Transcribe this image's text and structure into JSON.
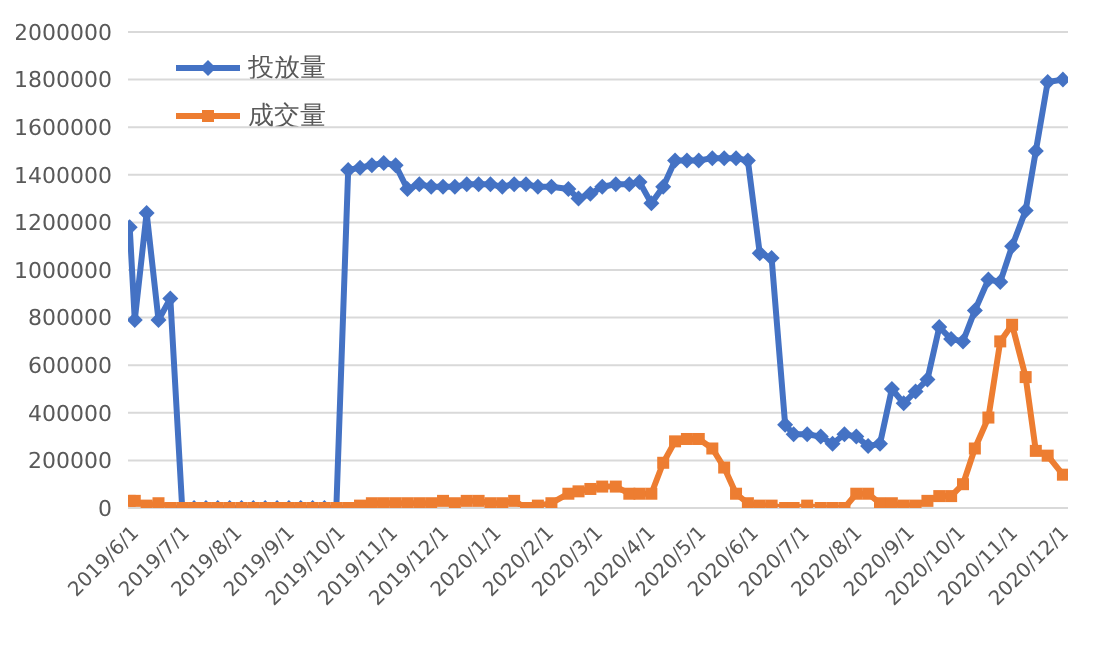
{
  "chart_data": {
    "type": "line",
    "x": [
      "2019-06-01",
      "2019-06-04",
      "2019-06-11",
      "2019-06-18",
      "2019-06-25",
      "2019-07-02",
      "2019-07-09",
      "2019-07-16",
      "2019-07-23",
      "2019-07-30",
      "2019-08-06",
      "2019-08-13",
      "2019-08-20",
      "2019-08-27",
      "2019-09-03",
      "2019-09-10",
      "2019-09-17",
      "2019-09-24",
      "2019-10-01",
      "2019-10-08",
      "2019-10-15",
      "2019-10-22",
      "2019-10-29",
      "2019-11-05",
      "2019-11-12",
      "2019-11-19",
      "2019-11-26",
      "2019-12-03",
      "2019-12-10",
      "2019-12-17",
      "2019-12-24",
      "2019-12-31",
      "2020-01-07",
      "2020-01-14",
      "2020-01-21",
      "2020-01-28",
      "2020-02-05",
      "2020-02-15",
      "2020-02-21",
      "2020-02-28",
      "2020-03-06",
      "2020-03-14",
      "2020-03-22",
      "2020-03-28",
      "2020-04-04",
      "2020-04-11",
      "2020-04-18",
      "2020-04-25",
      "2020-05-02",
      "2020-05-10",
      "2020-05-17",
      "2020-05-24",
      "2020-05-31",
      "2020-06-07",
      "2020-06-14",
      "2020-06-22",
      "2020-06-27",
      "2020-07-05",
      "2020-07-13",
      "2020-07-20",
      "2020-07-27",
      "2020-08-03",
      "2020-08-10",
      "2020-08-17",
      "2020-08-24",
      "2020-08-31",
      "2020-09-07",
      "2020-09-14",
      "2020-09-21",
      "2020-09-28",
      "2020-10-05",
      "2020-10-12",
      "2020-10-20",
      "2020-10-27",
      "2020-11-03",
      "2020-11-11",
      "2020-11-17",
      "2020-11-24",
      "2020-12-03"
    ],
    "series": [
      {
        "name": "投放量",
        "color": "#4472c4",
        "marker": "diamond",
        "values": [
          1180000,
          790000,
          1240000,
          790000,
          880000,
          0,
          0,
          0,
          0,
          0,
          0,
          0,
          0,
          0,
          0,
          0,
          0,
          0,
          0,
          1420000,
          1430000,
          1440000,
          1450000,
          1440000,
          1340000,
          1360000,
          1350000,
          1350000,
          1350000,
          1360000,
          1360000,
          1360000,
          1350000,
          1360000,
          1360000,
          1350000,
          1350000,
          1340000,
          1300000,
          1320000,
          1350000,
          1360000,
          1360000,
          1370000,
          1280000,
          1350000,
          1460000,
          1460000,
          1460000,
          1470000,
          1470000,
          1470000,
          1460000,
          1070000,
          1050000,
          350000,
          310000,
          310000,
          300000,
          270000,
          310000,
          300000,
          260000,
          270000,
          500000,
          440000,
          490000,
          540000,
          760000,
          710000,
          700000,
          830000,
          960000,
          950000,
          1100000,
          1250000,
          1500000,
          1790000,
          1800000
        ]
      },
      {
        "name": "成交量",
        "color": "#ed7d31",
        "marker": "square",
        "values": [
          30000,
          30000,
          10000,
          20000,
          0,
          0,
          0,
          0,
          0,
          0,
          0,
          0,
          0,
          0,
          0,
          0,
          0,
          0,
          0,
          0,
          10000,
          20000,
          20000,
          20000,
          20000,
          20000,
          20000,
          30000,
          20000,
          30000,
          30000,
          20000,
          20000,
          30000,
          0,
          10000,
          20000,
          60000,
          70000,
          80000,
          90000,
          90000,
          60000,
          60000,
          60000,
          190000,
          280000,
          290000,
          290000,
          250000,
          170000,
          60000,
          20000,
          10000,
          10000,
          0,
          0,
          10000,
          0,
          0,
          0,
          60000,
          60000,
          20000,
          20000,
          10000,
          10000,
          30000,
          50000,
          50000,
          100000,
          250000,
          380000,
          700000,
          770000,
          550000,
          240000,
          220000,
          140000
        ]
      }
    ],
    "xlim": [
      "2019-05-31",
      "2020-12-06"
    ],
    "xticks": [
      {
        "value": "2019-06-01",
        "label": "2019/6/1"
      },
      {
        "value": "2019-07-01",
        "label": "2019/7/1"
      },
      {
        "value": "2019-08-01",
        "label": "2019/8/1"
      },
      {
        "value": "2019-09-01",
        "label": "2019/9/1"
      },
      {
        "value": "2019-10-01",
        "label": "2019/10/1"
      },
      {
        "value": "2019-11-01",
        "label": "2019/11/1"
      },
      {
        "value": "2019-12-01",
        "label": "2019/12/1"
      },
      {
        "value": "2020-01-01",
        "label": "2020/1/1"
      },
      {
        "value": "2020-02-01",
        "label": "2020/2/1"
      },
      {
        "value": "2020-03-01",
        "label": "2020/3/1"
      },
      {
        "value": "2020-04-01",
        "label": "2020/4/1"
      },
      {
        "value": "2020-05-01",
        "label": "2020/5/1"
      },
      {
        "value": "2020-06-01",
        "label": "2020/6/1"
      },
      {
        "value": "2020-07-01",
        "label": "2020/7/1"
      },
      {
        "value": "2020-08-01",
        "label": "2020/8/1"
      },
      {
        "value": "2020-09-01",
        "label": "2020/9/1"
      },
      {
        "value": "2020-10-01",
        "label": "2020/10/1"
      },
      {
        "value": "2020-11-01",
        "label": "2020/11/1"
      },
      {
        "value": "2020-12-01",
        "label": "2020/12/1"
      }
    ],
    "ylim": [
      0,
      2000000
    ],
    "yticks": [
      0,
      200000,
      400000,
      600000,
      800000,
      1000000,
      1200000,
      1400000,
      1600000,
      1800000,
      2000000
    ],
    "grid": "y",
    "legend": "top left"
  }
}
